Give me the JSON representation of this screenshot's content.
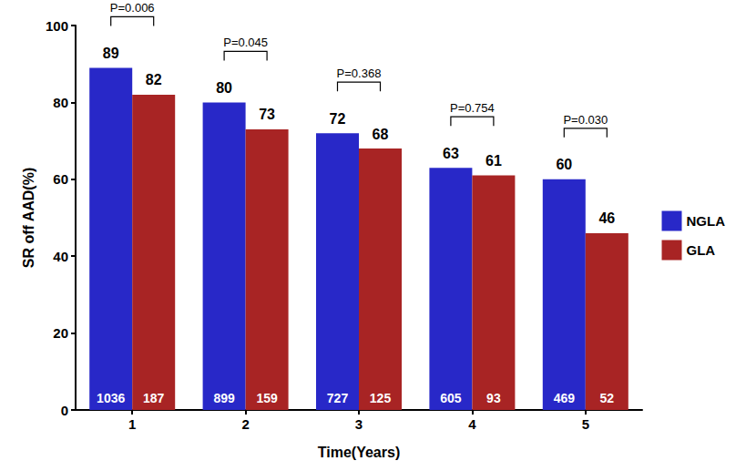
{
  "chart_data": {
    "type": "bar",
    "x_label": "Time(Years)",
    "y_label": "SR off AAD(%)",
    "categories": [
      "1",
      "2",
      "3",
      "4",
      "5"
    ],
    "series": [
      {
        "name": "NGLA",
        "color": "#2828c8",
        "values": [
          89,
          80,
          72,
          63,
          60
        ],
        "counts": [
          1036,
          899,
          727,
          605,
          469
        ]
      },
      {
        "name": "GLA",
        "color": "#a82424",
        "values": [
          82,
          73,
          68,
          61,
          46
        ],
        "counts": [
          187,
          159,
          125,
          93,
          52
        ]
      }
    ],
    "annotations": [
      "P=0.006",
      "P=0.045",
      "P=0.368",
      "P=0.754",
      "P=0.030"
    ],
    "ylim": [
      0,
      100
    ],
    "yticks": [
      0,
      20,
      40,
      60,
      80,
      100
    ],
    "grid": false,
    "legend": "right",
    "data_labels": true
  }
}
